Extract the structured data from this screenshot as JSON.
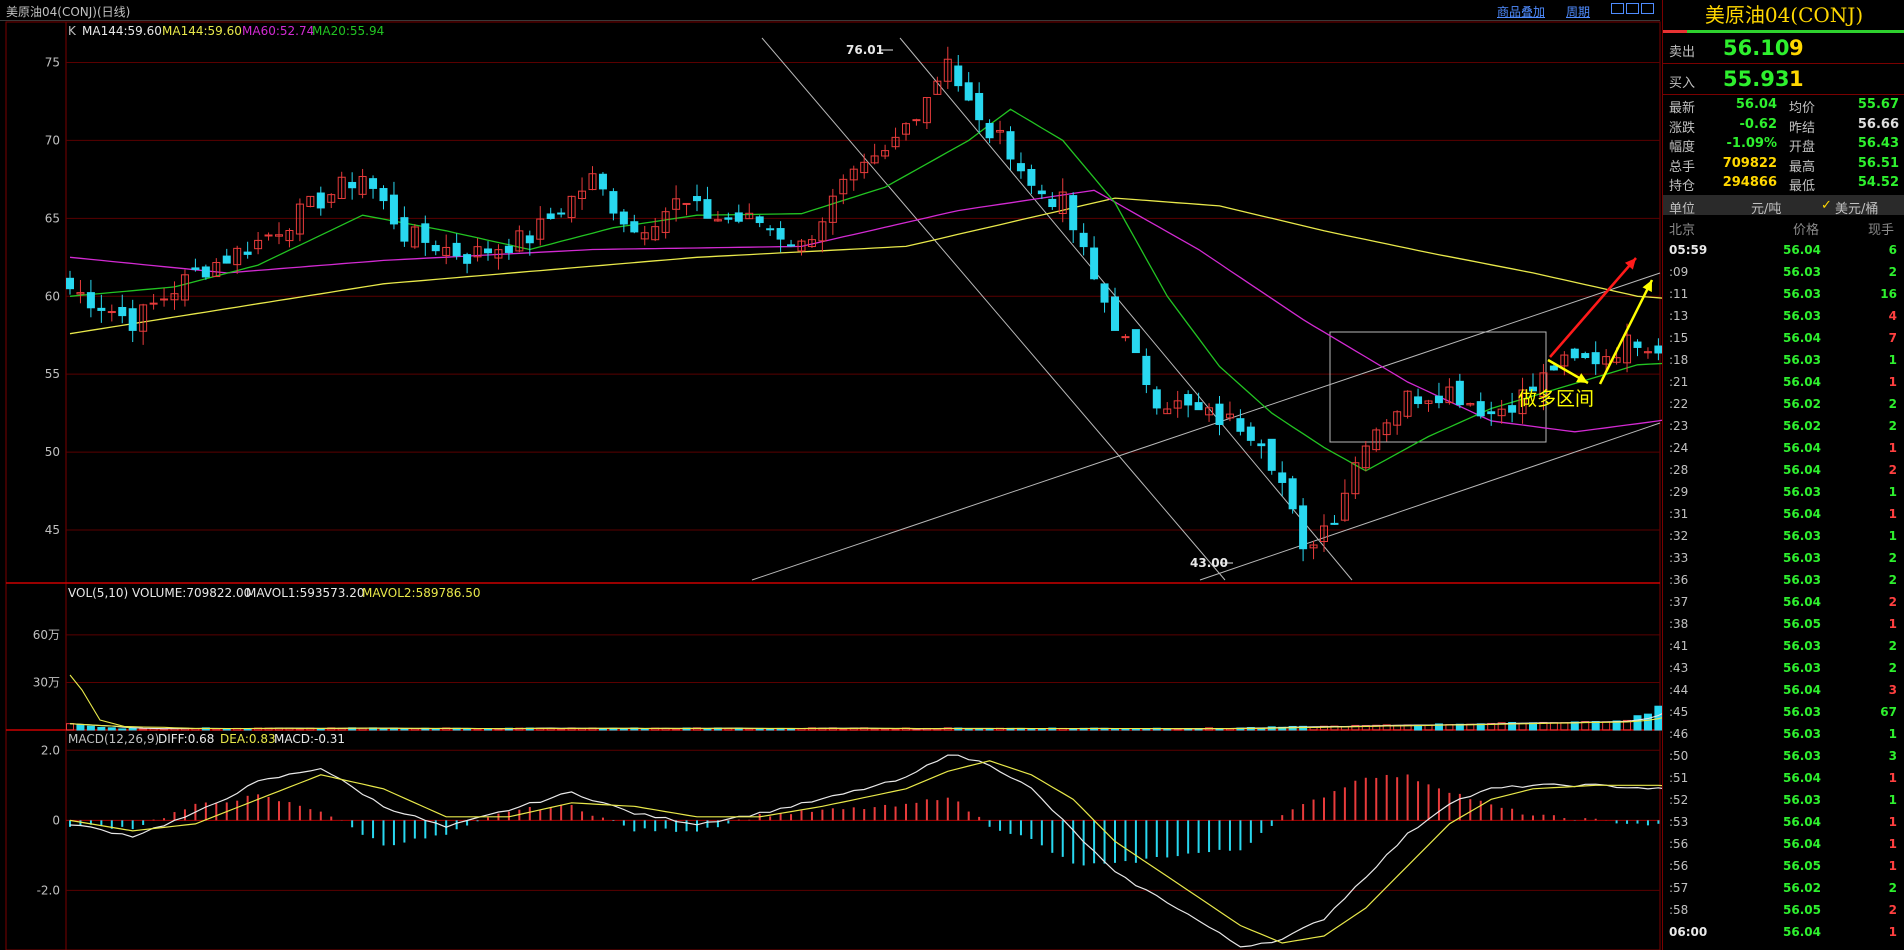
{
  "top_bar": {
    "title": "美原油04(CONJ)(日线)",
    "link_overlay": "商品叠加",
    "link_period": "周期"
  },
  "legend_main": {
    "k": "K",
    "ma144a": "MA144:59.60",
    "ma144b": "MA144:59.60",
    "ma60": "MA60:52.74",
    "ma20": "MA20:55.94"
  },
  "legend_vol": {
    "vol": "VOL(5,10) VOLUME:709822.00",
    "mavol1": "MAVOL1:593573.20",
    "mavol2": "MAVOL2:589786.50"
  },
  "legend_macd": {
    "macd": "MACD(12,26,9)",
    "diff": "DIFF:0.68",
    "dea": "DEA:0.83",
    "macdv": "MACD:-0.31"
  },
  "annotations": {
    "high": "76.01",
    "low": "43.00",
    "zone": "做多区间"
  },
  "chart_data": [
    {
      "type": "candlestick",
      "name": "price",
      "y_ticks": [
        "75",
        "70",
        "65",
        "60",
        "55",
        "50",
        "45"
      ],
      "ylim": [
        41.6,
        77.6
      ],
      "x_range": [
        0,
        190
      ],
      "high_point": {
        "index": 84,
        "value": 76.01
      },
      "low_point": {
        "index": 118,
        "value": 43.0
      },
      "last_close": 56.04,
      "anchors": [
        [
          0,
          60.5
        ],
        [
          6,
          58.4
        ],
        [
          12,
          61.5
        ],
        [
          18,
          63.5
        ],
        [
          24,
          66.2
        ],
        [
          28,
          67.8
        ],
        [
          32,
          64.0
        ],
        [
          38,
          62.6
        ],
        [
          44,
          63.8
        ],
        [
          50,
          67.5
        ],
        [
          54,
          64.2
        ],
        [
          58,
          66.0
        ],
        [
          62,
          65.0
        ],
        [
          66,
          64.8
        ],
        [
          70,
          63.2
        ],
        [
          74,
          67.0
        ],
        [
          78,
          69.0
        ],
        [
          82,
          73.0
        ],
        [
          84,
          75.0
        ],
        [
          87,
          71.0
        ],
        [
          90,
          69.5
        ],
        [
          92,
          67.0
        ],
        [
          95,
          66.0
        ],
        [
          98,
          61.0
        ],
        [
          101,
          57.0
        ],
        [
          104,
          53.5
        ],
        [
          108,
          52.5
        ],
        [
          112,
          51.8
        ],
        [
          114,
          51.0
        ],
        [
          116,
          48.0
        ],
        [
          118,
          43.8
        ],
        [
          121,
          46.0
        ],
        [
          124,
          51.0
        ],
        [
          128,
          53.5
        ],
        [
          132,
          54.0
        ],
        [
          136,
          52.5
        ],
        [
          140,
          54.0
        ],
        [
          142,
          55.5
        ],
        [
          146,
          56.0
        ],
        [
          150,
          57.3
        ],
        [
          154,
          56.3
        ],
        [
          158,
          56.0
        ]
      ]
    },
    {
      "type": "line",
      "name": "moving-averages",
      "series": [
        {
          "label": "MA144",
          "values": [
            [
              0,
              57.6
            ],
            [
              30,
              60.8
            ],
            [
              60,
              62.5
            ],
            [
              80,
              63.2
            ],
            [
              100,
              66.3
            ],
            [
              110,
              65.8
            ],
            [
              120,
              64.2
            ],
            [
              130,
              62.8
            ],
            [
              140,
              61.5
            ],
            [
              150,
              60.0
            ],
            [
              158,
              59.6
            ]
          ]
        },
        {
          "label": "MA60",
          "values": [
            [
              0,
              62.5
            ],
            [
              15,
              61.5
            ],
            [
              30,
              62.3
            ],
            [
              50,
              63.0
            ],
            [
              70,
              63.2
            ],
            [
              85,
              65.5
            ],
            [
              98,
              66.8
            ],
            [
              108,
              63.0
            ],
            [
              118,
              58.5
            ],
            [
              128,
              54.5
            ],
            [
              136,
              52.0
            ],
            [
              144,
              51.3
            ],
            [
              152,
              52.0
            ],
            [
              158,
              52.7
            ]
          ]
        },
        {
          "label": "MA20",
          "values": [
            [
              0,
              60.0
            ],
            [
              10,
              60.6
            ],
            [
              18,
              62.0
            ],
            [
              28,
              65.2
            ],
            [
              36,
              64.2
            ],
            [
              44,
              63.0
            ],
            [
              52,
              64.4
            ],
            [
              60,
              65.2
            ],
            [
              70,
              65.3
            ],
            [
              78,
              67.0
            ],
            [
              86,
              70.0
            ],
            [
              90,
              72.0
            ],
            [
              95,
              70.0
            ],
            [
              100,
              66.0
            ],
            [
              105,
              60.0
            ],
            [
              110,
              55.5
            ],
            [
              115,
              52.5
            ],
            [
              120,
              50.3
            ],
            [
              124,
              48.8
            ],
            [
              130,
              51.0
            ],
            [
              136,
              52.8
            ],
            [
              142,
              54.0
            ],
            [
              150,
              55.6
            ],
            [
              158,
              55.9
            ]
          ]
        }
      ]
    },
    {
      "type": "bar",
      "name": "volume",
      "y_ticks": [
        "60万",
        "30万"
      ],
      "ylim": [
        0,
        820000
      ],
      "last_volume": 709822,
      "recent_volumes": [
        [
          150,
          90000
        ],
        [
          151,
          100000
        ],
        [
          152,
          150000
        ],
        [
          153,
          220000
        ],
        [
          154,
          280000
        ],
        [
          155,
          230000
        ],
        [
          156,
          400000
        ],
        [
          157,
          350000
        ],
        [
          158,
          780000
        ],
        [
          159,
          620000
        ],
        [
          160,
          450000
        ],
        [
          161,
          520000
        ],
        [
          162,
          680000
        ],
        [
          163,
          600000
        ],
        [
          164,
          560000
        ],
        [
          165,
          670000
        ],
        [
          166,
          640000
        ],
        [
          167,
          500000
        ],
        [
          168,
          650000
        ],
        [
          169,
          710000
        ]
      ]
    },
    {
      "type": "bar",
      "name": "macd",
      "y_ticks": [
        "2.0",
        "0",
        "-2.0"
      ],
      "ylim": [
        -3.7,
        2.55
      ],
      "diff_anchors": [
        [
          0,
          -0.1
        ],
        [
          6,
          -0.45
        ],
        [
          12,
          0.2
        ],
        [
          18,
          1.1
        ],
        [
          24,
          1.5
        ],
        [
          30,
          0.4
        ],
        [
          36,
          -0.2
        ],
        [
          42,
          0.3
        ],
        [
          48,
          0.8
        ],
        [
          54,
          0.2
        ],
        [
          60,
          -0.1
        ],
        [
          66,
          0.2
        ],
        [
          72,
          0.6
        ],
        [
          80,
          1.2
        ],
        [
          84,
          1.9
        ],
        [
          88,
          1.6
        ],
        [
          92,
          0.9
        ],
        [
          96,
          -0.3
        ],
        [
          100,
          -1.5
        ],
        [
          106,
          -2.5
        ],
        [
          112,
          -3.6
        ],
        [
          116,
          -3.4
        ],
        [
          120,
          -2.8
        ],
        [
          124,
          -1.6
        ],
        [
          128,
          -0.4
        ],
        [
          132,
          0.5
        ],
        [
          136,
          0.9
        ],
        [
          140,
          1.0
        ],
        [
          146,
          1.0
        ],
        [
          152,
          0.9
        ],
        [
          158,
          0.68
        ]
      ],
      "dea_anchors": [
        [
          0,
          0.0
        ],
        [
          6,
          -0.3
        ],
        [
          12,
          -0.1
        ],
        [
          18,
          0.6
        ],
        [
          24,
          1.3
        ],
        [
          30,
          0.9
        ],
        [
          36,
          0.1
        ],
        [
          42,
          0.1
        ],
        [
          48,
          0.5
        ],
        [
          54,
          0.4
        ],
        [
          60,
          0.1
        ],
        [
          66,
          0.1
        ],
        [
          72,
          0.4
        ],
        [
          80,
          0.9
        ],
        [
          84,
          1.4
        ],
        [
          88,
          1.7
        ],
        [
          92,
          1.3
        ],
        [
          96,
          0.6
        ],
        [
          100,
          -0.6
        ],
        [
          106,
          -1.8
        ],
        [
          112,
          -3.0
        ],
        [
          116,
          -3.5
        ],
        [
          120,
          -3.3
        ],
        [
          124,
          -2.5
        ],
        [
          128,
          -1.3
        ],
        [
          132,
          -0.1
        ],
        [
          136,
          0.6
        ],
        [
          140,
          0.9
        ],
        [
          146,
          1.0
        ],
        [
          152,
          1.0
        ],
        [
          158,
          0.83
        ]
      ]
    }
  ],
  "quote": {
    "title": "美原油04(CONJ)",
    "sell_label": "卖出",
    "sell_price": "56.10",
    "sell_vol": "9",
    "buy_label": "买入",
    "buy_price": "55.93",
    "buy_vol": "1",
    "rows": [
      {
        "l1": "最新",
        "v1": "56.04",
        "c1": "g",
        "l2": "均价",
        "v2": "55.67",
        "c2": "g"
      },
      {
        "l1": "涨跌",
        "v1": "-0.62",
        "c1": "g",
        "l2": "昨结",
        "v2": "56.66",
        "c2": "w"
      },
      {
        "l1": "幅度",
        "v1": "-1.09%",
        "c1": "g",
        "l2": "开盘",
        "v2": "56.43",
        "c2": "g"
      },
      {
        "l1": "总手",
        "v1": "709822",
        "c1": "y",
        "l2": "最高",
        "v2": "56.51",
        "c2": "g"
      },
      {
        "l1": "持仓",
        "v1": "294866",
        "c1": "y",
        "l2": "最低",
        "v2": "54.52",
        "c2": "g"
      }
    ],
    "unit_label": "单位",
    "unit_val1": "元/吨",
    "unit_check": "✓",
    "unit_val2": "美元/桶",
    "tick_header": {
      "time": "北京",
      "price": "价格",
      "vol": "现手"
    },
    "ticks": [
      {
        "t": "05:59",
        "p": "56.04",
        "v": "6",
        "pc": "g",
        "vc": "g"
      },
      {
        "t": ":09",
        "p": "56.03",
        "v": "2",
        "pc": "g",
        "vc": "g"
      },
      {
        "t": ":11",
        "p": "56.03",
        "v": "16",
        "pc": "g",
        "vc": "g"
      },
      {
        "t": ":13",
        "p": "56.03",
        "v": "4",
        "pc": "g",
        "vc": "r"
      },
      {
        "t": ":15",
        "p": "56.04",
        "v": "7",
        "pc": "g",
        "vc": "r"
      },
      {
        "t": ":18",
        "p": "56.03",
        "v": "1",
        "pc": "g",
        "vc": "g"
      },
      {
        "t": ":21",
        "p": "56.04",
        "v": "1",
        "pc": "g",
        "vc": "r"
      },
      {
        "t": ":22",
        "p": "56.02",
        "v": "2",
        "pc": "g",
        "vc": "g"
      },
      {
        "t": ":23",
        "p": "56.02",
        "v": "2",
        "pc": "g",
        "vc": "g"
      },
      {
        "t": ":24",
        "p": "56.04",
        "v": "1",
        "pc": "g",
        "vc": "r"
      },
      {
        "t": ":28",
        "p": "56.04",
        "v": "2",
        "pc": "g",
        "vc": "r"
      },
      {
        "t": ":29",
        "p": "56.03",
        "v": "1",
        "pc": "g",
        "vc": "g"
      },
      {
        "t": ":31",
        "p": "56.04",
        "v": "1",
        "pc": "g",
        "vc": "r"
      },
      {
        "t": ":32",
        "p": "56.03",
        "v": "1",
        "pc": "g",
        "vc": "g"
      },
      {
        "t": ":33",
        "p": "56.03",
        "v": "2",
        "pc": "g",
        "vc": "g"
      },
      {
        "t": ":36",
        "p": "56.03",
        "v": "2",
        "pc": "g",
        "vc": "g"
      },
      {
        "t": ":37",
        "p": "56.04",
        "v": "2",
        "pc": "g",
        "vc": "r"
      },
      {
        "t": ":38",
        "p": "56.05",
        "v": "1",
        "pc": "g",
        "vc": "r"
      },
      {
        "t": ":41",
        "p": "56.03",
        "v": "2",
        "pc": "g",
        "vc": "g"
      },
      {
        "t": ":43",
        "p": "56.03",
        "v": "2",
        "pc": "g",
        "vc": "g"
      },
      {
        "t": ":44",
        "p": "56.04",
        "v": "3",
        "pc": "g",
        "vc": "r"
      },
      {
        "t": ":45",
        "p": "56.03",
        "v": "67",
        "pc": "g",
        "vc": "g"
      },
      {
        "t": ":46",
        "p": "56.03",
        "v": "1",
        "pc": "g",
        "vc": "g"
      },
      {
        "t": ":50",
        "p": "56.03",
        "v": "3",
        "pc": "g",
        "vc": "g"
      },
      {
        "t": ":51",
        "p": "56.04",
        "v": "1",
        "pc": "g",
        "vc": "r"
      },
      {
        "t": ":52",
        "p": "56.03",
        "v": "1",
        "pc": "g",
        "vc": "g"
      },
      {
        "t": ":53",
        "p": "56.04",
        "v": "1",
        "pc": "g",
        "vc": "r"
      },
      {
        "t": ":56",
        "p": "56.04",
        "v": "1",
        "pc": "g",
        "vc": "r"
      },
      {
        "t": ":56",
        "p": "56.05",
        "v": "1",
        "pc": "g",
        "vc": "r"
      },
      {
        "t": ":57",
        "p": "56.02",
        "v": "2",
        "pc": "g",
        "vc": "g"
      },
      {
        "t": ":58",
        "p": "56.05",
        "v": "2",
        "pc": "g",
        "vc": "r"
      },
      {
        "t": "06:00",
        "p": "56.04",
        "v": "1",
        "pc": "g",
        "vc": "r"
      }
    ]
  },
  "colors": {
    "bg": "#000000",
    "grid": "#5a0000",
    "up": "#e83b3b",
    "down": "#29d8f0",
    "ma144": "#e8e84a",
    "ma60": "#d22ad2",
    "ma20": "#22c322",
    "trend": "#b8b8b8",
    "diff": "#e8e8e8",
    "dea": "#e8e84a",
    "arrow_red": "#ff1a1a",
    "arrow_yellow": "#ffff00"
  }
}
